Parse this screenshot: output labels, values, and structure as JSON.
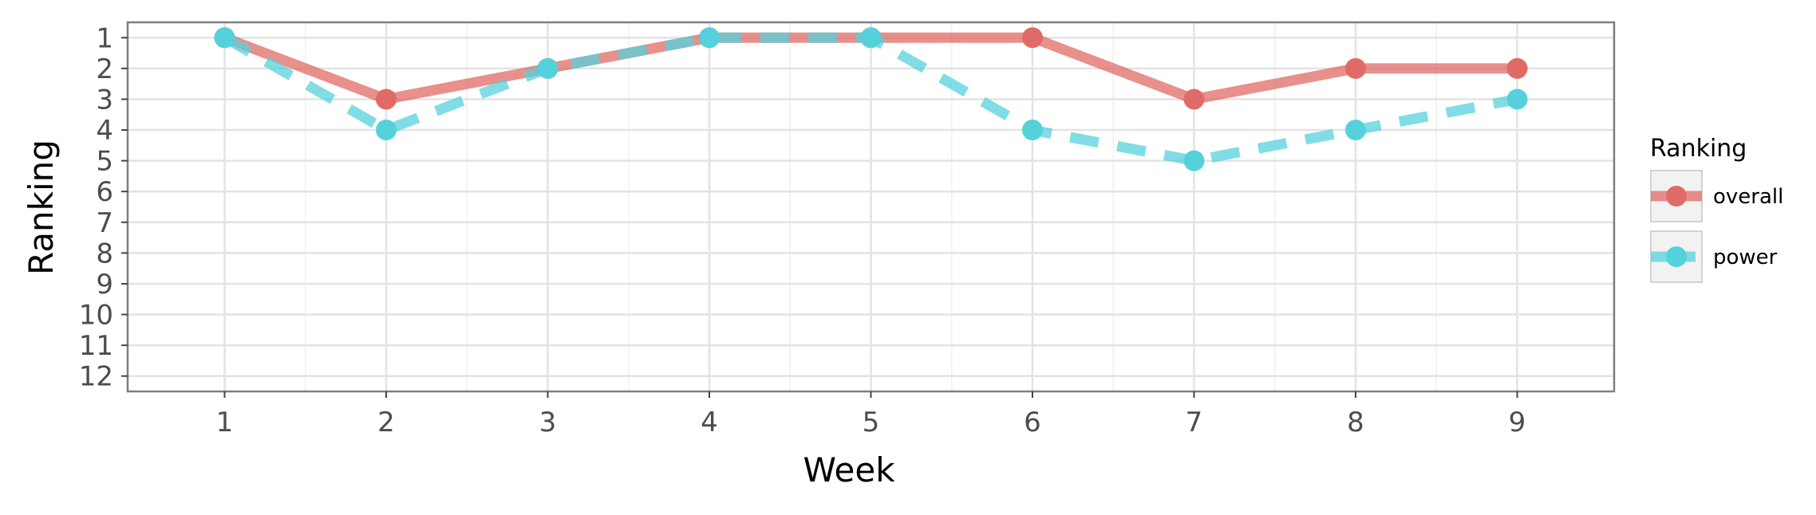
{
  "chart_data": {
    "type": "line",
    "xlabel": "Week",
    "ylabel": "Ranking",
    "x": [
      1,
      2,
      3,
      4,
      5,
      6,
      7,
      8,
      9
    ],
    "xlim": [
      0.4,
      9.6
    ],
    "ylim": [
      12.5,
      0.5
    ],
    "y_reversed": true,
    "x_ticks": [
      1,
      2,
      3,
      4,
      5,
      6,
      7,
      8,
      9
    ],
    "y_ticks": [
      1,
      2,
      3,
      4,
      5,
      6,
      7,
      8,
      9,
      10,
      11,
      12
    ],
    "grid": true,
    "legend": {
      "title": "Ranking",
      "position": "right"
    },
    "series": [
      {
        "name": "overall",
        "values": [
          1,
          3,
          2,
          1,
          1,
          1,
          3,
          2,
          2
        ],
        "color": "#e06b66",
        "line_style": "solid"
      },
      {
        "name": "power",
        "values": [
          1,
          4,
          2,
          1,
          1,
          4,
          5,
          4,
          3
        ],
        "color": "#55d1dc",
        "line_style": "dashed"
      }
    ]
  }
}
